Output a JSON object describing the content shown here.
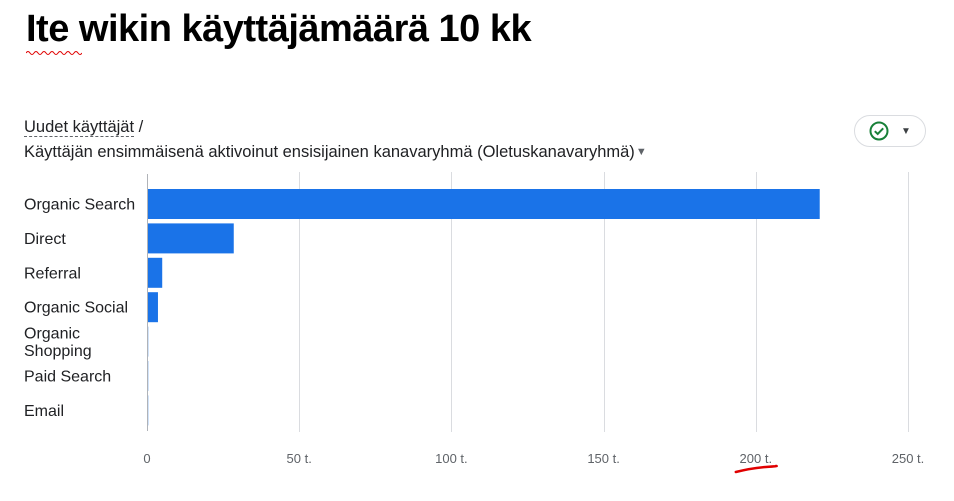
{
  "page": {
    "title": "Ite wikin käyttäjämäärä 10 kk"
  },
  "card": {
    "metric_label": "Uudet käyttäjät",
    "separator": "/",
    "dimension_label": "Käyttäjän ensimmäisenä aktivoinut ensisijainen kanavaryhmä (Oletuskanavaryhmä)",
    "dimension_dropdown_icon": "triangle-down-icon",
    "status_icon": "check-circle-icon",
    "status_menu_icon": "caret-down-icon"
  },
  "colors": {
    "bar": "#1a73e8",
    "grid": "#dadce0",
    "check": "#188038",
    "annotation": "#e00000"
  },
  "chart_data": {
    "type": "bar",
    "orientation": "horizontal",
    "categories": [
      "Organic Search",
      "Direct",
      "Referral",
      "Organic Social",
      "Organic Shopping",
      "Paid Search",
      "Email"
    ],
    "category_lines": [
      [
        "Organic Search"
      ],
      [
        "Direct"
      ],
      [
        "Referral"
      ],
      [
        "Organic Social"
      ],
      [
        "Organic",
        "Shopping"
      ],
      [
        "Paid Search"
      ],
      [
        "Email"
      ]
    ],
    "values": [
      221000,
      28500,
      5000,
      3600,
      300,
      300,
      350
    ],
    "x_ticks": [
      0,
      50000,
      100000,
      150000,
      200000,
      250000
    ],
    "x_tick_labels": [
      "0",
      "50 t.",
      "100 t.",
      "150 t.",
      "200 t.",
      "250 t."
    ],
    "xlim": [
      0,
      250000
    ],
    "grid": true,
    "annotation": {
      "type": "underline",
      "tick_label": "200 t."
    }
  }
}
